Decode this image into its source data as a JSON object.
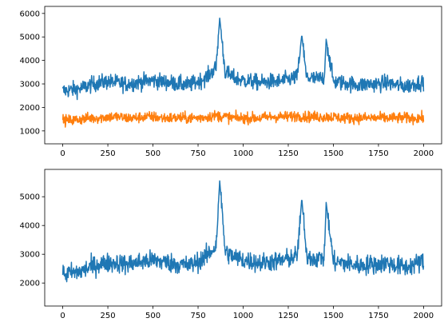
{
  "chart_data": [
    {
      "type": "line",
      "title": "",
      "xlabel": "",
      "ylabel": "",
      "xlim": [
        -100,
        2100
      ],
      "ylim": [
        450,
        6300
      ],
      "x_ticks": [
        0,
        250,
        500,
        750,
        1000,
        1250,
        1500,
        1750,
        2000
      ],
      "x_tick_labels": [
        "0",
        "250",
        "500",
        "750",
        "1000",
        "1250",
        "1500",
        "1750",
        "2000"
      ],
      "y_ticks": [
        1000,
        2000,
        3000,
        4000,
        5000,
        6000
      ],
      "y_tick_labels": [
        "1000",
        "2000",
        "3000",
        "4000",
        "5000",
        "6000"
      ],
      "grid": false,
      "series": [
        {
          "color": "#1f77b4",
          "x": [
            0,
            50,
            100,
            150,
            200,
            250,
            300,
            350,
            400,
            450,
            500,
            550,
            600,
            650,
            700,
            750,
            800,
            850,
            870,
            900,
            950,
            1000,
            1050,
            1100,
            1150,
            1200,
            1250,
            1300,
            1325,
            1350,
            1400,
            1450,
            1460,
            1500,
            1550,
            1600,
            1650,
            1700,
            1750,
            1800,
            1850,
            1900,
            1950,
            2000
          ],
          "values": [
            2700,
            2750,
            2800,
            2950,
            3050,
            3100,
            3050,
            3000,
            3050,
            3100,
            3150,
            3100,
            3050,
            3000,
            2950,
            3100,
            3300,
            3700,
            5800,
            3500,
            3250,
            3150,
            3100,
            3050,
            3100,
            3100,
            3200,
            3300,
            5100,
            3300,
            3200,
            3250,
            4900,
            3100,
            3050,
            3000,
            2950,
            3000,
            3000,
            3050,
            2950,
            2900,
            3000,
            3100
          ]
        },
        {
          "color": "#ff7f0e",
          "x": [
            0,
            50,
            100,
            150,
            200,
            250,
            300,
            350,
            400,
            450,
            500,
            550,
            600,
            650,
            700,
            750,
            800,
            850,
            900,
            950,
            1000,
            1050,
            1100,
            1150,
            1200,
            1250,
            1300,
            1350,
            1400,
            1450,
            1500,
            1550,
            1600,
            1650,
            1700,
            1750,
            1800,
            1850,
            1900,
            1950,
            2000
          ],
          "values": [
            1450,
            1450,
            1500,
            1550,
            1550,
            1600,
            1600,
            1550,
            1550,
            1600,
            1600,
            1550,
            1550,
            1550,
            1550,
            1550,
            1600,
            1650,
            1600,
            1550,
            1550,
            1550,
            1550,
            1600,
            1600,
            1600,
            1650,
            1600,
            1600,
            1600,
            1600,
            1550,
            1550,
            1550,
            1550,
            1550,
            1550,
            1550,
            1550,
            1550,
            1550
          ]
        }
      ]
    },
    {
      "type": "line",
      "title": "",
      "xlabel": "",
      "ylabel": "",
      "xlim": [
        -100,
        2100
      ],
      "ylim": [
        1200,
        5950
      ],
      "x_ticks": [
        0,
        250,
        500,
        750,
        1000,
        1250,
        1500,
        1750,
        2000
      ],
      "x_tick_labels": [
        "0",
        "250",
        "500",
        "750",
        "1000",
        "1250",
        "1500",
        "1750",
        "2000"
      ],
      "y_ticks": [
        2000,
        3000,
        4000,
        5000
      ],
      "y_tick_labels": [
        "2000",
        "3000",
        "4000",
        "5000"
      ],
      "grid": false,
      "series": [
        {
          "color": "#1f77b4",
          "x": [
            0,
            50,
            100,
            150,
            200,
            250,
            300,
            350,
            400,
            450,
            500,
            550,
            600,
            650,
            700,
            750,
            800,
            850,
            870,
            900,
            950,
            1000,
            1050,
            1100,
            1150,
            1200,
            1250,
            1300,
            1325,
            1350,
            1400,
            1450,
            1460,
            1500,
            1550,
            1600,
            1650,
            1700,
            1750,
            1800,
            1850,
            1900,
            1950,
            2000
          ],
          "values": [
            2300,
            2350,
            2400,
            2550,
            2650,
            2700,
            2700,
            2650,
            2700,
            2750,
            2800,
            2750,
            2700,
            2650,
            2600,
            2750,
            2950,
            3300,
            5550,
            3100,
            2900,
            2800,
            2750,
            2700,
            2750,
            2750,
            2850,
            2950,
            4950,
            2950,
            2850,
            2900,
            4800,
            2750,
            2700,
            2650,
            2600,
            2650,
            2650,
            2700,
            2600,
            2550,
            2650,
            2750
          ]
        }
      ]
    }
  ]
}
